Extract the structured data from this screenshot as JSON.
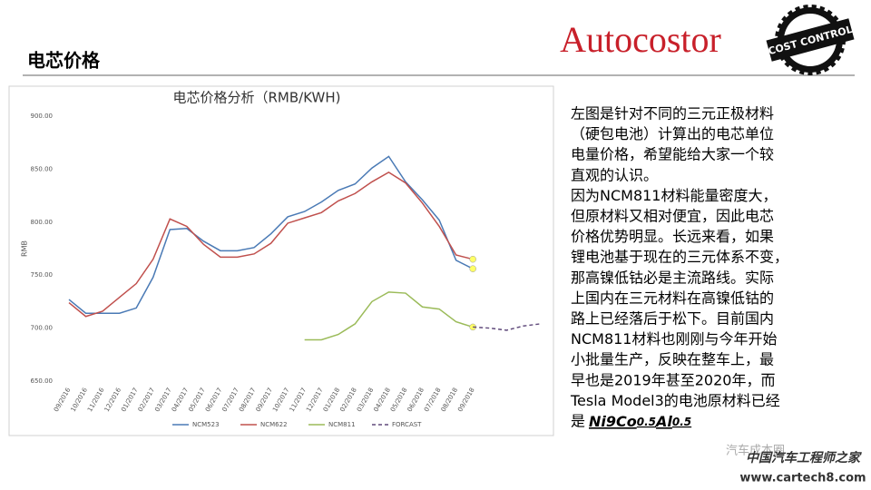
{
  "header": {
    "title": "电芯价格"
  },
  "logo": {
    "text": "Autocostor",
    "badge": "COST CONTROL"
  },
  "chart_data": {
    "type": "line",
    "title": "电芯价格分析（RMB/KWH)",
    "y_label": "RMB",
    "categories": [
      "09/2016",
      "10/2016",
      "11/2016",
      "12/2016",
      "01/2017",
      "02/2017",
      "03/2017",
      "04/2017",
      "05/2017",
      "06/2017",
      "07/2017",
      "08/2017",
      "09/2017",
      "10/2017",
      "11/2017",
      "12/2017",
      "01/2018",
      "02/2018",
      "03/2018",
      "04/2018",
      "05/2018",
      "06/2018",
      "07/2018",
      "08/2018",
      "09/2018",
      null,
      null,
      null,
      null
    ],
    "ylim": [
      650,
      900
    ],
    "yticks": [
      {
        "value": 650,
        "label": "650.00"
      },
      {
        "value": 700,
        "label": "700.00"
      },
      {
        "value": 750,
        "label": "750.00"
      },
      {
        "value": 800,
        "label": "800.00"
      },
      {
        "value": 850,
        "label": "850.00"
      },
      {
        "value": 900,
        "label": "900.00"
      }
    ],
    "grid": false,
    "legend": "bottom",
    "end_marker_color": "#ffff66",
    "series": [
      {
        "name": "NCM523",
        "color": "#4a7ab5",
        "dashed": false,
        "end_marker": true,
        "values": [
          727,
          714,
          714,
          714,
          719,
          748,
          793,
          794,
          782,
          773,
          773,
          776,
          789,
          805,
          810,
          819,
          830,
          836,
          851,
          862,
          838,
          821,
          802,
          764,
          756,
          null,
          null,
          null,
          null
        ]
      },
      {
        "name": "NCM622",
        "color": "#c0504d",
        "dashed": false,
        "end_marker": true,
        "values": [
          724,
          711,
          716,
          729,
          742,
          765,
          803,
          796,
          779,
          767,
          767,
          770,
          780,
          799,
          804,
          809,
          820,
          827,
          838,
          847,
          837,
          818,
          796,
          769,
          765,
          null,
          null,
          null,
          null
        ]
      },
      {
        "name": "NCM811",
        "color": "#9bbb59",
        "dashed": false,
        "end_marker": true,
        "values": [
          null,
          null,
          null,
          null,
          null,
          null,
          null,
          null,
          null,
          null,
          null,
          null,
          null,
          null,
          689,
          689,
          694,
          704,
          725,
          734,
          733,
          720,
          718,
          706,
          701,
          null,
          null,
          null,
          null
        ]
      },
      {
        "name": "FORCAST",
        "color": "#604a7b",
        "dashed": true,
        "end_marker": false,
        "values": [
          null,
          null,
          null,
          null,
          null,
          null,
          null,
          null,
          null,
          null,
          null,
          null,
          null,
          null,
          null,
          null,
          null,
          null,
          null,
          null,
          null,
          null,
          null,
          null,
          701,
          700,
          698,
          702,
          704
        ]
      }
    ]
  },
  "text": {
    "lines": [
      "左图是针对不同的三元正极材料",
      "（硬包电池）计算出的电芯单位",
      "电量价格，希望能给大家一个较",
      "直观的认识。",
      "因为NCM811材料能量密度大，",
      "但原材料又相对便宜，因此电芯",
      "价格优势明显。长远来看，如果",
      "锂电池基于现在的三元体系不变，",
      "那高镍低钴必是主流路线。实际",
      "上国内在三元材料在高镍低钴的",
      "路上已经落后于松下。目前国内",
      "NCM811材料也刚刚与今年开始",
      "小批量生产，反映在整车上，最",
      "早也是2019年甚至2020年，而",
      "Tesla Model3的电池原材料已经"
    ],
    "last_prefix": "是",
    "formula": [
      "Ni9",
      "Co",
      "0.5",
      "Al",
      "0.5"
    ]
  },
  "watermark": {
    "account": "汽车成本圈",
    "site_name": "中国汽车工程师之家",
    "url": "www.cartech8.com"
  }
}
